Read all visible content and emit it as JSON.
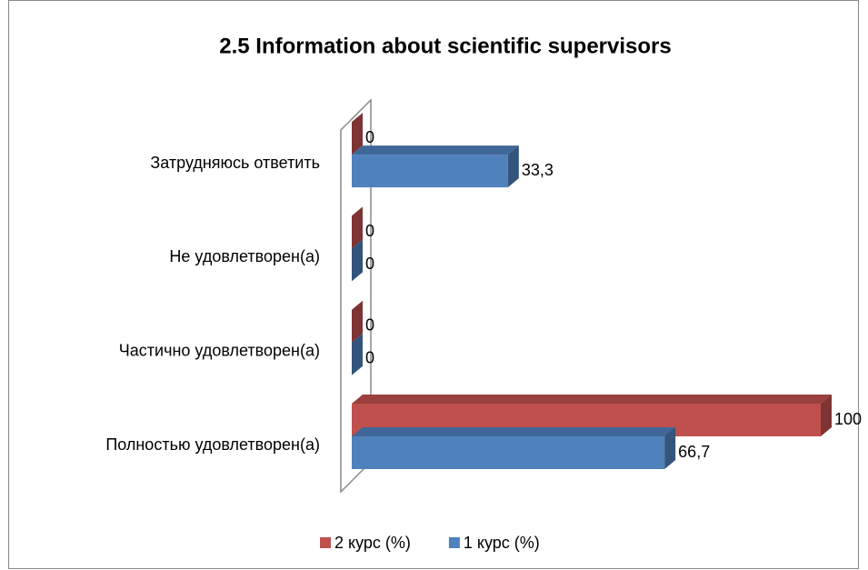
{
  "chart_data": {
    "type": "bar3d_horizontal",
    "title": "2.5 Information about scientific supervisors",
    "categories": [
      "Полностью удовлетворен(а)",
      "Частично удовлетворен(а)",
      "Не удовлетворен(а)",
      "Затрудняюсь ответить"
    ],
    "series": [
      {
        "name": "2 курс (%)",
        "color": "#c0504d",
        "values": [
          100,
          0,
          0,
          0
        ]
      },
      {
        "name": "1 курс (%)",
        "color": "#4f81bd",
        "values": [
          66.7,
          0,
          0,
          33.3
        ],
        "value_labels": [
          "66,7",
          "0",
          "0",
          "33,3"
        ]
      }
    ],
    "legend": "bottom"
  }
}
